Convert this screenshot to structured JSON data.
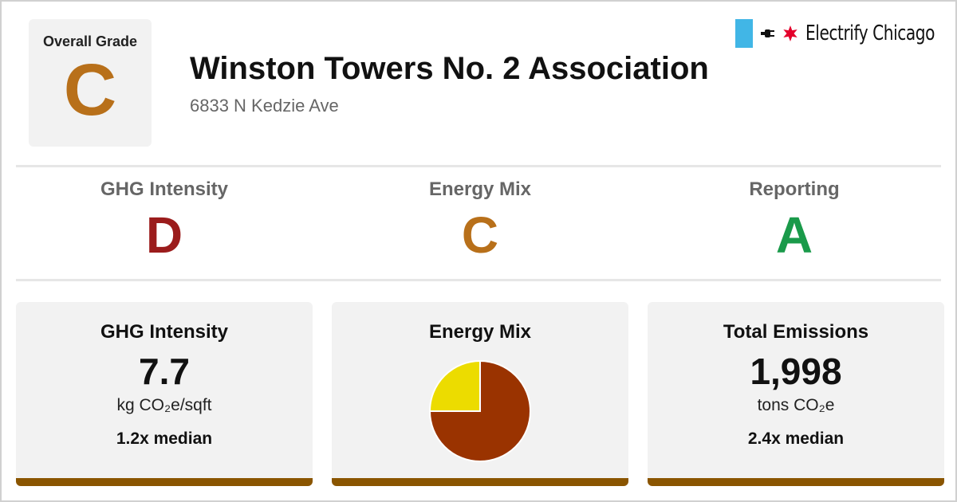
{
  "colors": {
    "grade_c": "#b8701a",
    "grade_d": "#9b1c1c",
    "grade_a": "#1a9a4a",
    "card_bar": "#8a5500",
    "pie_primary": "#9a3300",
    "pie_secondary": "#ecdc00",
    "chicago_blue": "#41b6e6",
    "chicago_red": "#e4002b"
  },
  "overall": {
    "label": "Overall Grade",
    "grade": "C"
  },
  "building": {
    "name": "Winston Towers No. 2 Association",
    "address": "6833 N Kedzie Ave"
  },
  "brand": {
    "name": "Electrify Chicago",
    "icons": [
      "plug-icon",
      "star-icon"
    ]
  },
  "subgrades": [
    {
      "label": "GHG Intensity",
      "grade": "D"
    },
    {
      "label": "Energy Mix",
      "grade": "C"
    },
    {
      "label": "Reporting",
      "grade": "A"
    }
  ],
  "cards": {
    "ghg": {
      "title": "GHG Intensity",
      "value": "7.7",
      "unit": "kg CO₂e/sqft",
      "median": "1.2x median"
    },
    "energy_mix": {
      "title": "Energy Mix"
    },
    "emissions": {
      "title": "Total Emissions",
      "value": "1,998",
      "unit": "tons CO₂e",
      "median": "2.4x median"
    }
  },
  "chart_data": {
    "type": "pie",
    "title": "",
    "slices": [
      {
        "value": 0.75
      },
      {
        "value": 0.25
      }
    ]
  }
}
